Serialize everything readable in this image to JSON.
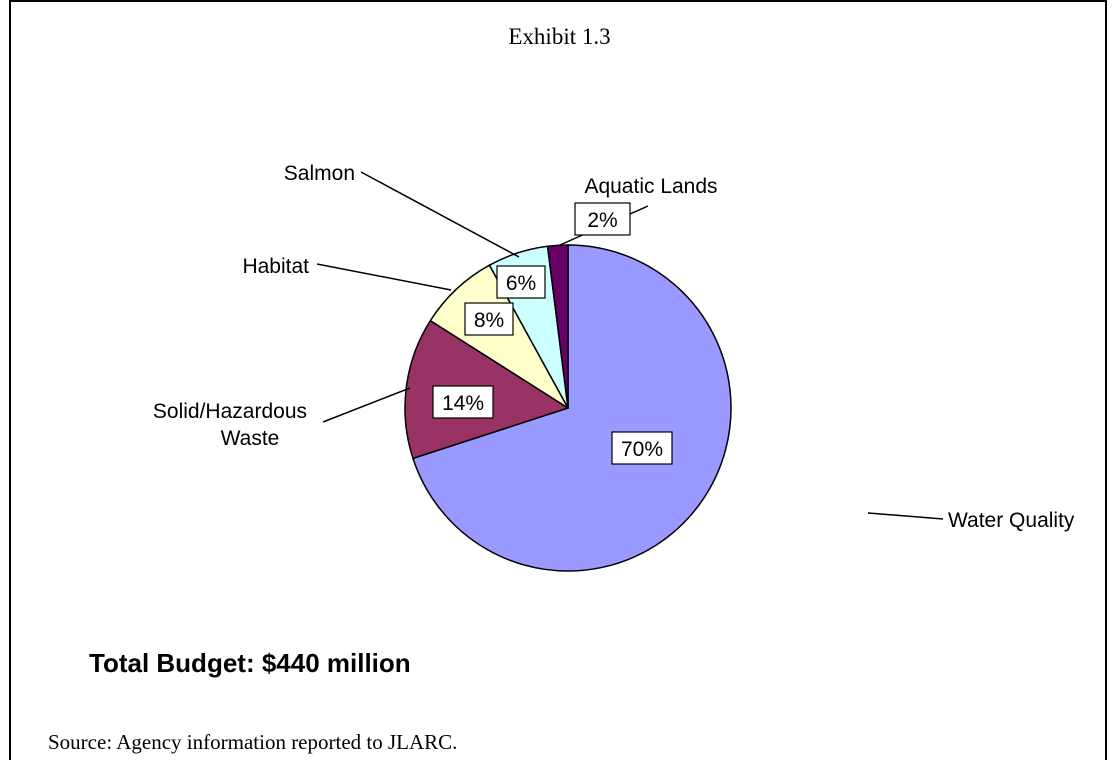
{
  "chart_data": {
    "type": "pie",
    "title": "Exhibit 1.3",
    "slices": [
      {
        "label": "Water Quality",
        "value": 70,
        "value_label": "70%",
        "color": "#9999ff"
      },
      {
        "label": "Solid/Hazardous Waste",
        "label_lines": [
          "Solid/Hazardous",
          "Waste"
        ],
        "value": 14,
        "value_label": "14%",
        "color": "#993366"
      },
      {
        "label": "Habitat",
        "value": 8,
        "value_label": "8%",
        "color": "#ffffcc"
      },
      {
        "label": "Salmon",
        "value": 6,
        "value_label": "6%",
        "color": "#ccffff"
      },
      {
        "label": "Aquatic Lands",
        "value": 2,
        "value_label": "2%",
        "color": "#660066"
      }
    ]
  },
  "total_budget": "Total Budget: $440 million",
  "source": "Source:  Agency information reported to JLARC."
}
